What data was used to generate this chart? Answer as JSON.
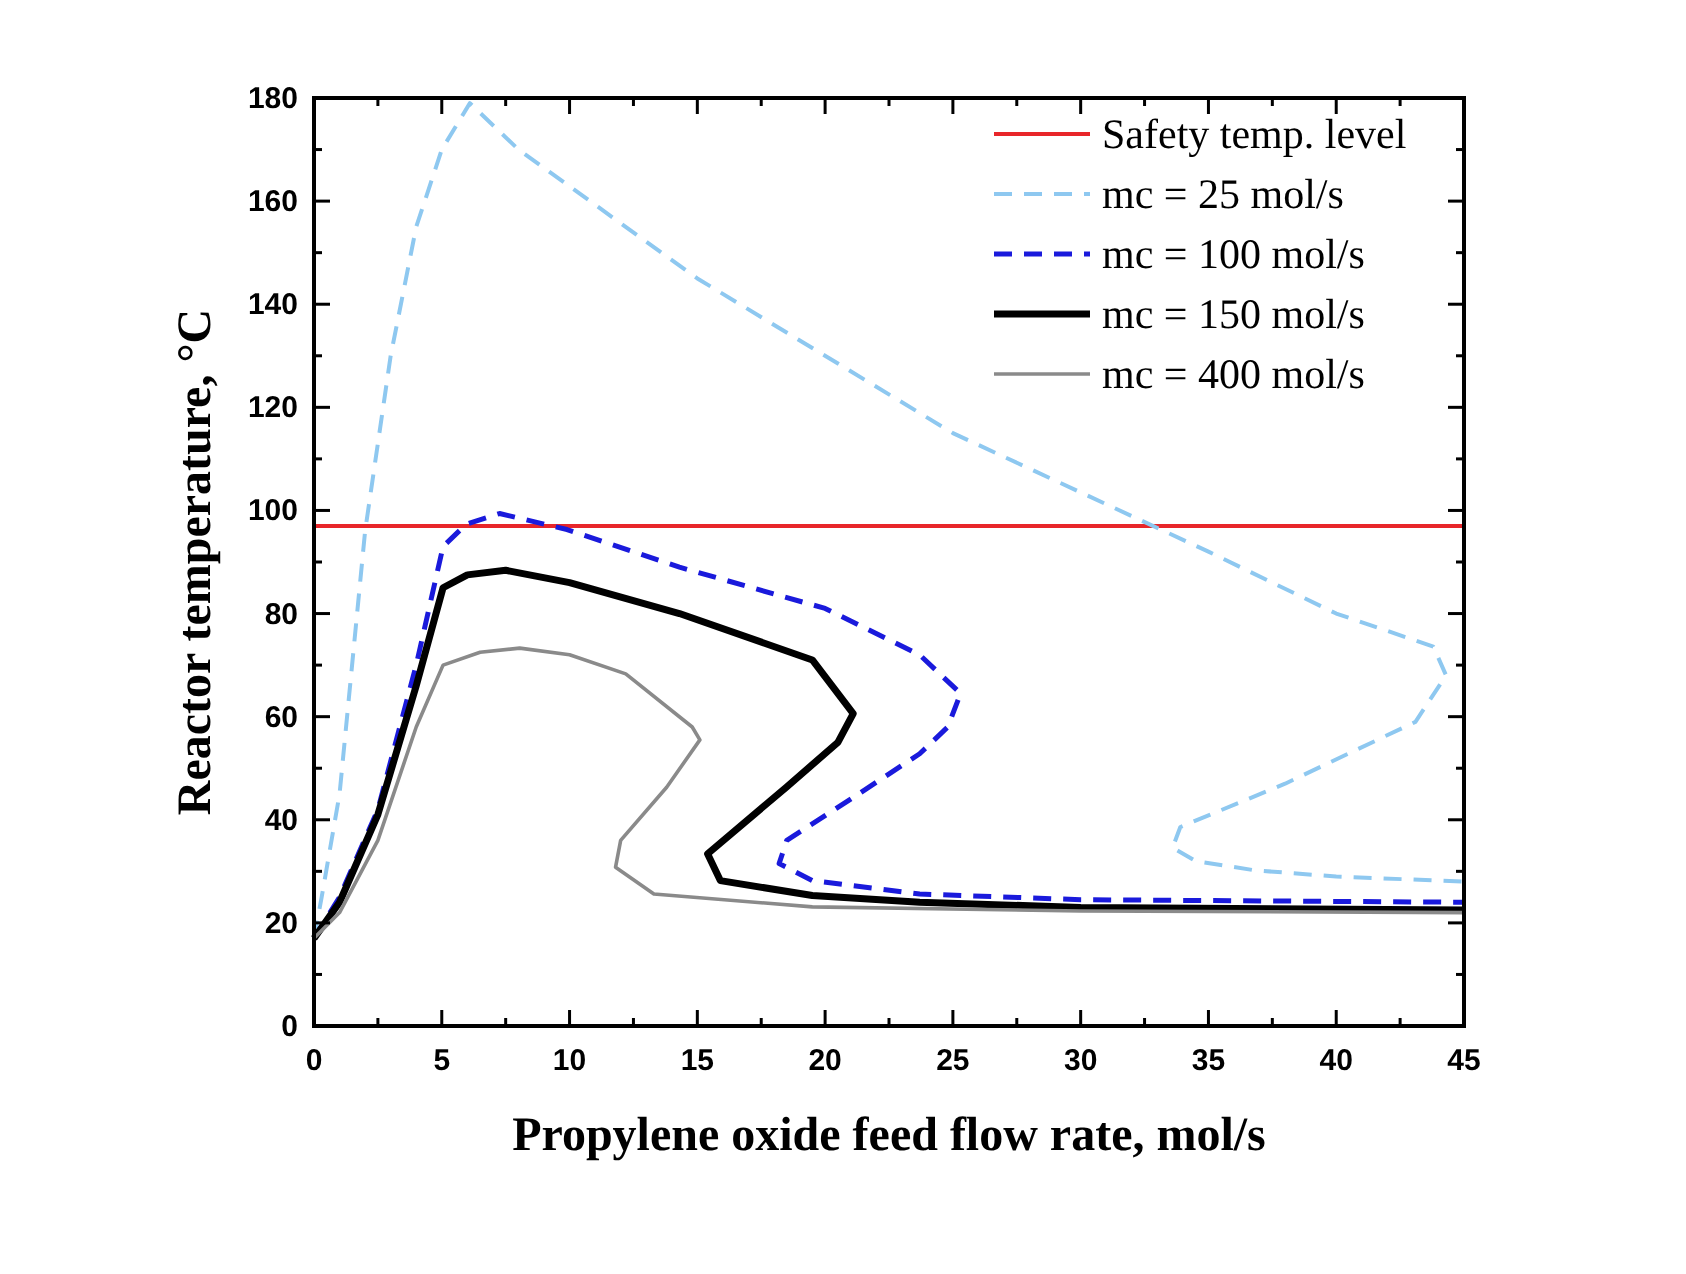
{
  "chart_data": {
    "type": "line",
    "xlabel": "Propylene oxide feed flow rate, mol/s",
    "ylabel": "Reactor temperature, °C",
    "xlim": [
      0,
      45
    ],
    "ylim": [
      0,
      180
    ],
    "xticks": [
      0,
      {
        "value": 2.5,
        "label": null
      },
      5,
      {
        "value": 7.5,
        "label": null
      },
      10,
      {
        "value": 12.5,
        "label": null
      },
      15,
      {
        "value": 17.5,
        "label": null
      },
      20,
      {
        "value": 22.5,
        "label": null
      },
      25,
      {
        "value": 27.5,
        "label": null
      },
      30,
      {
        "value": 32.5,
        "label": null
      },
      35,
      {
        "value": 37.5,
        "label": null
      },
      40,
      {
        "value": 42.5,
        "label": null
      },
      45
    ],
    "yticks": [
      0,
      {
        "value": 10,
        "label": null
      },
      20,
      {
        "value": 30,
        "label": null
      },
      40,
      {
        "value": 50,
        "label": null
      },
      60,
      {
        "value": 70,
        "label": null
      },
      80,
      {
        "value": 90,
        "label": null
      },
      100,
      {
        "value": 110,
        "label": null
      },
      120,
      {
        "value": 130,
        "label": null
      },
      140,
      {
        "value": 150,
        "label": null
      },
      160,
      {
        "value": 170,
        "label": null
      },
      180
    ],
    "grid": false,
    "legend": "top right",
    "marker": "none",
    "series": [
      {
        "name": "Safety temp. level",
        "color": "#e8262a",
        "line_style": "solid",
        "x": [
          0,
          45
        ],
        "values": [
          97,
          97
        ]
      },
      {
        "name": "mc = 25 mol/s",
        "color": "#8ec8f0",
        "line_style": "dashed",
        "x": [
          0,
          0.3,
          1,
          2,
          3,
          4,
          5,
          6.1,
          8,
          15,
          25,
          35,
          40,
          43.8,
          44.3,
          43.1,
          38,
          33.9,
          33.6,
          34.5,
          36.8,
          40,
          45
        ],
        "values": [
          17,
          25,
          45,
          96,
          130,
          155,
          170,
          179,
          170,
          145,
          115,
          92,
          80,
          73.6,
          68,
          59,
          47,
          38.6,
          34.6,
          32,
          30.2,
          29,
          28
        ]
      },
      {
        "name": "mc = 100 mol/s",
        "color": "#1a1adc",
        "line_style": "dashed",
        "x": [
          0,
          1,
          2.5,
          4,
          5.05,
          5.95,
          7.26,
          9.9,
          14.3,
          20,
          23.7,
          25.3,
          24.8,
          23.7,
          21,
          18.5,
          18.2,
          19.5,
          23.7,
          30,
          45
        ],
        "values": [
          17,
          25,
          42,
          70,
          93,
          97.3,
          99.4,
          96.3,
          89,
          81,
          72,
          64.5,
          58,
          52.8,
          44,
          36,
          31.5,
          28.2,
          25.6,
          24.5,
          24
        ]
      },
      {
        "name": "mc = 150 mol/s",
        "color": "#000000",
        "line_style": "solid",
        "x": [
          0,
          1,
          2.5,
          4,
          5.05,
          6,
          7.5,
          10,
          14.3,
          19.5,
          21.1,
          20.5,
          18.5,
          15.4,
          15.9,
          19.5,
          23.7,
          30,
          45
        ],
        "values": [
          17,
          24,
          41,
          66,
          85,
          87.5,
          88.4,
          86,
          80,
          71,
          60.6,
          55,
          46.4,
          33.4,
          28.2,
          25.3,
          24,
          23,
          22.5
        ]
      },
      {
        "name": "mc = 400 mol/s",
        "color": "#8a8a8a",
        "line_style": "solid",
        "x": [
          0,
          1,
          2.5,
          4,
          5.05,
          6.5,
          8.05,
          10,
          12.2,
          14.8,
          15.1,
          13.8,
          12,
          11.8,
          13.3,
          19.5,
          30,
          45
        ],
        "values": [
          17,
          22,
          36,
          58,
          70,
          72.5,
          73.3,
          72,
          68.3,
          58,
          55.5,
          46.3,
          36,
          30.8,
          25.6,
          23.1,
          22.3,
          22
        ]
      }
    ]
  }
}
